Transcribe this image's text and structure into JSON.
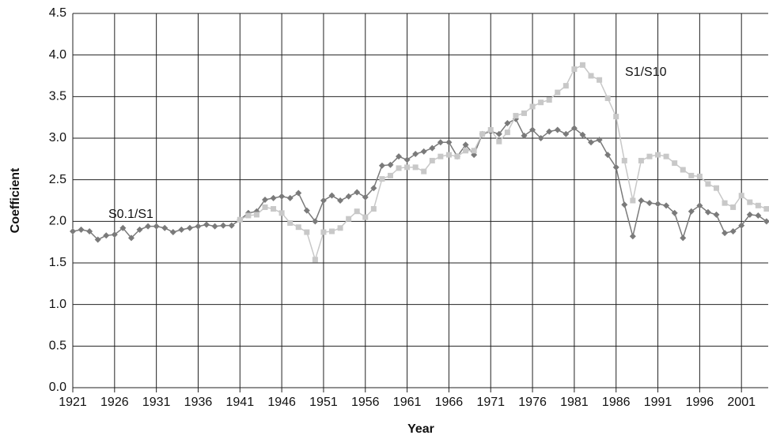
{
  "chart_data": {
    "type": "line",
    "x_label": "Year",
    "y_label": "Coefficient",
    "x": [
      1921,
      1922,
      1923,
      1924,
      1925,
      1926,
      1927,
      1928,
      1929,
      1930,
      1931,
      1932,
      1933,
      1934,
      1935,
      1936,
      1937,
      1938,
      1939,
      1940,
      1941,
      1942,
      1943,
      1944,
      1945,
      1946,
      1947,
      1948,
      1949,
      1950,
      1951,
      1952,
      1953,
      1954,
      1955,
      1956,
      1957,
      1958,
      1959,
      1960,
      1961,
      1962,
      1963,
      1964,
      1965,
      1966,
      1967,
      1968,
      1969,
      1970,
      1971,
      1972,
      1973,
      1974,
      1975,
      1976,
      1977,
      1978,
      1979,
      1980,
      1981,
      1982,
      1983,
      1984,
      1985,
      1986,
      1987,
      1988,
      1989,
      1990,
      1991,
      1992,
      1993,
      1994,
      1995,
      1996,
      1997,
      1998,
      1999,
      2000,
      2001,
      2002,
      2003,
      2004
    ],
    "series": [
      {
        "name": "S0.1/S1",
        "color": "#7a7a7a",
        "marker": "diamond",
        "values": [
          1.88,
          1.9,
          1.88,
          1.78,
          1.83,
          1.84,
          1.92,
          1.8,
          1.9,
          1.94,
          1.94,
          1.92,
          1.87,
          1.9,
          1.92,
          1.94,
          1.96,
          1.94,
          1.95,
          1.95,
          2.02,
          2.1,
          2.12,
          2.26,
          2.28,
          2.3,
          2.28,
          2.34,
          2.13,
          2.0,
          2.25,
          2.31,
          2.25,
          2.3,
          2.35,
          2.29,
          2.4,
          2.67,
          2.68,
          2.78,
          2.74,
          2.81,
          2.84,
          2.88,
          2.95,
          2.95,
          2.78,
          2.92,
          2.8,
          3.05,
          3.08,
          3.05,
          3.18,
          3.23,
          3.03,
          3.1,
          3.0,
          3.08,
          3.1,
          3.05,
          3.12,
          3.04,
          2.95,
          2.98,
          2.8,
          2.65,
          2.2,
          1.82,
          2.25,
          2.22,
          2.21,
          2.19,
          2.1,
          1.8,
          2.12,
          2.19,
          2.11,
          2.08,
          1.86,
          1.88,
          1.95,
          2.08,
          2.07,
          2.0
        ]
      },
      {
        "name": "S1/S10",
        "color": "#c8c8c8",
        "marker": "square",
        "values": [
          null,
          null,
          null,
          null,
          null,
          null,
          null,
          null,
          null,
          null,
          null,
          null,
          null,
          null,
          null,
          null,
          null,
          null,
          null,
          null,
          2.02,
          2.07,
          2.08,
          2.17,
          2.15,
          2.1,
          1.98,
          1.93,
          1.87,
          1.54,
          1.87,
          1.88,
          1.92,
          2.03,
          2.12,
          2.05,
          2.15,
          2.51,
          2.55,
          2.64,
          2.65,
          2.65,
          2.6,
          2.73,
          2.78,
          2.8,
          2.78,
          2.85,
          2.85,
          3.05,
          3.1,
          2.96,
          3.07,
          3.27,
          3.3,
          3.38,
          3.43,
          3.46,
          3.55,
          3.63,
          3.83,
          3.88,
          3.75,
          3.7,
          3.48,
          3.26,
          2.73,
          2.25,
          2.73,
          2.78,
          2.8,
          2.78,
          2.7,
          2.62,
          2.55,
          2.54,
          2.45,
          2.4,
          2.22,
          2.17,
          2.31,
          2.23,
          2.19,
          2.15
        ]
      }
    ],
    "xlim": [
      1921,
      2004.2
    ],
    "xticks": [
      1921,
      1926,
      1931,
      1936,
      1941,
      1946,
      1951,
      1956,
      1961,
      1966,
      1971,
      1976,
      1981,
      1986,
      1991,
      1996,
      2001
    ],
    "ylim": [
      0,
      4.5
    ],
    "yticks": [
      {
        "value": 0,
        "label": "0.0"
      },
      0.5,
      {
        "value": 1,
        "label": "1.0"
      },
      1.5,
      {
        "value": 2,
        "label": "2.0"
      },
      2.5,
      {
        "value": 3,
        "label": "3.0"
      },
      3.5,
      {
        "value": 4,
        "label": "4.0"
      },
      4.5
    ],
    "grid": true
  }
}
